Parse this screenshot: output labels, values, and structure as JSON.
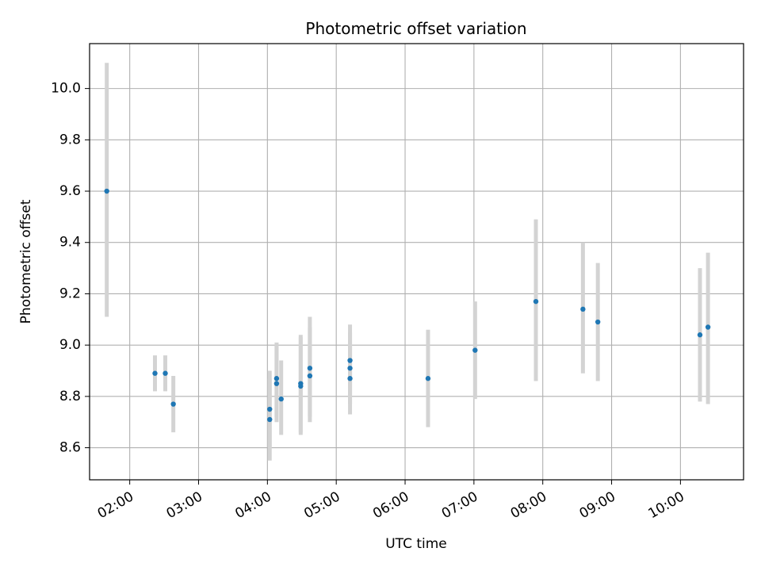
{
  "chart_data": {
    "type": "scatter",
    "title": "Photometric offset variation",
    "xlabel": "UTC time",
    "ylabel": "Photometric offset",
    "xlim": [
      "01:25",
      "10:55"
    ],
    "ylim": [
      8.475,
      10.175
    ],
    "x_ticks": [
      "02:00",
      "03:00",
      "04:00",
      "05:00",
      "06:00",
      "07:00",
      "08:00",
      "09:00",
      "10:00"
    ],
    "y_ticks": [
      "8.6",
      "8.8",
      "9.0",
      "9.2",
      "9.4",
      "9.6",
      "9.8",
      "10.0"
    ],
    "grid": true,
    "colors": {
      "point": "#1f77b4",
      "errorbar": "#d3d3d3",
      "grid": "#b0b0b0"
    },
    "series": [
      {
        "points": [
          {
            "x": "01:40",
            "y": 9.6,
            "err_low": 9.11,
            "err_high": 10.1
          },
          {
            "x": "02:22",
            "y": 8.89,
            "err_low": 8.82,
            "err_high": 8.96
          },
          {
            "x": "02:31",
            "y": 8.89,
            "err_low": 8.82,
            "err_high": 8.96
          },
          {
            "x": "02:38",
            "y": 8.77,
            "err_low": 8.66,
            "err_high": 8.88
          },
          {
            "x": "04:02",
            "y": 8.75,
            "err_low": 8.6,
            "err_high": 8.9
          },
          {
            "x": "04:02",
            "y": 8.71,
            "err_low": 8.55,
            "err_high": 8.87
          },
          {
            "x": "04:08",
            "y": 8.87,
            "err_low": 8.72,
            "err_high": 9.01
          },
          {
            "x": "04:08",
            "y": 8.85,
            "err_low": 8.7,
            "err_high": 9.0
          },
          {
            "x": "04:12",
            "y": 8.79,
            "err_low": 8.65,
            "err_high": 8.94
          },
          {
            "x": "04:29",
            "y": 8.85,
            "err_low": 8.66,
            "err_high": 9.04
          },
          {
            "x": "04:29",
            "y": 8.84,
            "err_low": 8.65,
            "err_high": 9.03
          },
          {
            "x": "04:37",
            "y": 8.91,
            "err_low": 8.72,
            "err_high": 9.11
          },
          {
            "x": "04:37",
            "y": 8.88,
            "err_low": 8.7,
            "err_high": 9.07
          },
          {
            "x": "05:12",
            "y": 8.94,
            "err_low": 8.8,
            "err_high": 9.08
          },
          {
            "x": "05:12",
            "y": 8.91,
            "err_low": 8.77,
            "err_high": 9.05
          },
          {
            "x": "05:12",
            "y": 8.87,
            "err_low": 8.73,
            "err_high": 9.01
          },
          {
            "x": "06:20",
            "y": 8.87,
            "err_low": 8.68,
            "err_high": 9.06
          },
          {
            "x": "07:01",
            "y": 8.98,
            "err_low": 8.79,
            "err_high": 9.17
          },
          {
            "x": "07:54",
            "y": 9.17,
            "err_low": 8.86,
            "err_high": 9.49
          },
          {
            "x": "08:35",
            "y": 9.14,
            "err_low": 8.89,
            "err_high": 9.4
          },
          {
            "x": "08:48",
            "y": 9.09,
            "err_low": 8.86,
            "err_high": 9.32
          },
          {
            "x": "10:17",
            "y": 9.04,
            "err_low": 8.78,
            "err_high": 9.3
          },
          {
            "x": "10:24",
            "y": 9.07,
            "err_low": 8.77,
            "err_high": 9.36
          }
        ]
      }
    ]
  }
}
